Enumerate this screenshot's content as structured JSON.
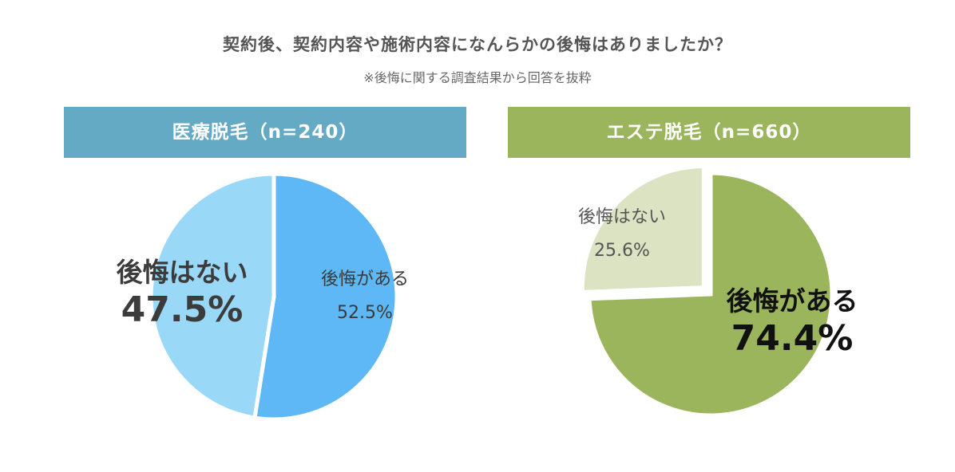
{
  "title": "契約後、契約内容や施術内容になんらかの後悔はありましたか？",
  "subtitle": "※後悔に関する調査結果から回答を抜粋",
  "colors": {
    "left_banner": "#65aac4",
    "right_banner": "#9bb55c"
  },
  "chart_data": [
    {
      "type": "pie",
      "title": "医療脱毛（n=240）",
      "slices": [
        {
          "label": "後悔がある",
          "value": 52.5,
          "display": "52.5%",
          "color": "#5fb8f6"
        },
        {
          "label": "後悔はない",
          "value": 47.5,
          "display": "47.5%",
          "color": "#9ad8f8"
        }
      ]
    },
    {
      "type": "pie",
      "title": "エステ脱毛（n=660）",
      "slices": [
        {
          "label": "後悔がある",
          "value": 74.4,
          "display": "74.4%",
          "color": "#9bb55c"
        },
        {
          "label": "後悔はない",
          "value": 25.6,
          "display": "25.6%",
          "color": "#dbe3c3"
        }
      ]
    }
  ]
}
